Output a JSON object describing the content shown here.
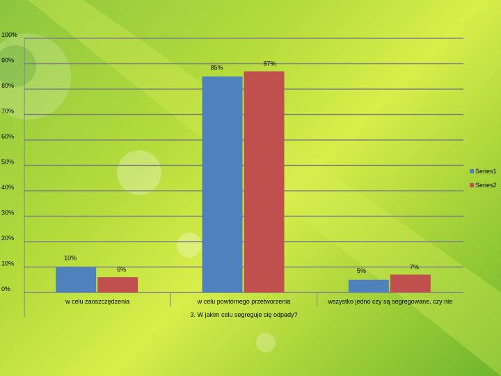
{
  "chart_data": {
    "type": "bar",
    "title": "",
    "xlabel": "3. W jakim celu segreguje się odpady?",
    "ylabel": "",
    "ylim": [
      0,
      100
    ],
    "y_ticks": [
      "0%",
      "10%",
      "20%",
      "30%",
      "40%",
      "50%",
      "60%",
      "70%",
      "80%",
      "90%",
      "100%"
    ],
    "grid": true,
    "legend_position": "right",
    "categories": [
      "w celu zaoszczędzenia",
      "w celu powtórnego przetworzenia",
      "wszystko jedno czy są segregowane, czy nie"
    ],
    "series": [
      {
        "name": "Series1",
        "color": "#4f81bd",
        "values": [
          10,
          85,
          5
        ],
        "labels": [
          "10%",
          "85%",
          "5%"
        ]
      },
      {
        "name": "Series2",
        "color": "#c0504d",
        "values": [
          6,
          87,
          7
        ],
        "labels": [
          "6%",
          "87%",
          "7%"
        ]
      }
    ]
  },
  "colors": {
    "grid": "#808080",
    "background": "#b5dc3c"
  }
}
